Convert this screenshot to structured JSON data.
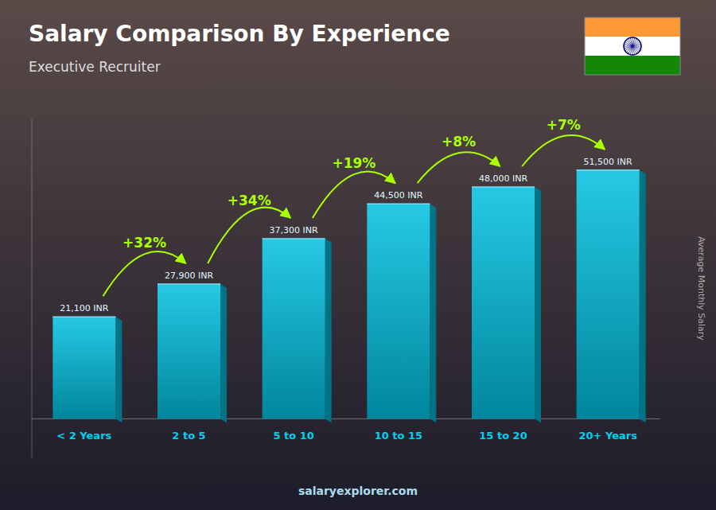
{
  "chart_data": {
    "type": "bar",
    "title": "Salary Comparison By Experience",
    "subtitle": "Executive Recruiter",
    "ylabel": "Average Monthly Salary",
    "watermark": "salaryexplorer.com",
    "categories": [
      "< 2 Years",
      "2 to 5",
      "5 to 10",
      "10 to 15",
      "15 to 20",
      "20+ Years"
    ],
    "values": [
      21100,
      27900,
      37300,
      44500,
      48000,
      51500
    ],
    "value_labels": [
      "21,100 INR",
      "27,900 INR",
      "37,300 INR",
      "44,500 INR",
      "48,000 INR",
      "51,500 INR"
    ],
    "annotations": [
      "+32%",
      "+34%",
      "+19%",
      "+8%",
      "+7%"
    ],
    "color": "#00bfdf",
    "ylim": [
      -8000,
      62000
    ],
    "grid": false,
    "data_labels": true,
    "tick_labels": "x"
  }
}
